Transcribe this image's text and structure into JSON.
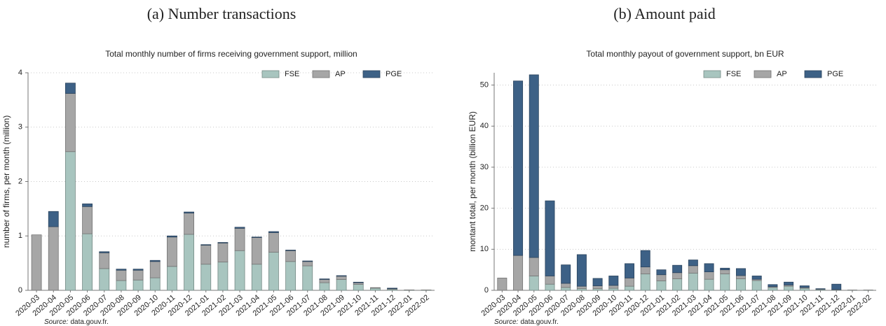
{
  "chart_data": [
    {
      "type": "bar",
      "stacked": true,
      "caption": "(a) Number transactions",
      "title": "Total monthly number of firms receiving government support, million",
      "ylabel": "number of firms, per month (million)",
      "source_label": "Source:",
      "source": "data.gouv.fr.",
      "categories": [
        "2020-03",
        "2020-04",
        "2020-05",
        "2020-06",
        "2020-07",
        "2020-08",
        "2020-09",
        "2020-10",
        "2020-11",
        "2020-12",
        "2021-01",
        "2021-02",
        "2021-03",
        "2021-04",
        "2021-05",
        "2021-06",
        "2021-07",
        "2021-08",
        "2021-09",
        "2021-10",
        "2021-11",
        "2021-12",
        "2022-01",
        "2022-02"
      ],
      "series": [
        {
          "name": "FSE",
          "color": "#a8c5bf",
          "values": [
            0,
            0,
            2.55,
            1.04,
            0.4,
            0.18,
            0.19,
            0.23,
            0.44,
            1.03,
            0.48,
            0.52,
            0.73,
            0.48,
            0.7,
            0.53,
            0.45,
            0.14,
            0.2,
            0.11,
            0.04,
            0.02,
            0.005,
            0.005
          ]
        },
        {
          "name": "AP",
          "color": "#a6a6a6",
          "values": [
            1.02,
            1.17,
            1.07,
            0.5,
            0.29,
            0.19,
            0.18,
            0.3,
            0.54,
            0.39,
            0.35,
            0.35,
            0.41,
            0.49,
            0.36,
            0.2,
            0.08,
            0.06,
            0.06,
            0.03,
            0.01,
            0.01,
            0.003,
            0.002
          ]
        },
        {
          "name": "PGE",
          "color": "#3d6186",
          "values": [
            0,
            0.28,
            0.19,
            0.05,
            0.02,
            0.02,
            0.02,
            0.02,
            0.02,
            0.02,
            0.01,
            0.01,
            0.02,
            0.01,
            0.02,
            0.01,
            0.01,
            0.01,
            0.01,
            0.01,
            0,
            0.01,
            0,
            0
          ]
        }
      ],
      "ylim": [
        0,
        4
      ],
      "yticks": [
        0,
        1,
        2,
        3,
        4
      ],
      "grid": true,
      "legend": "upper right"
    },
    {
      "type": "bar",
      "stacked": true,
      "caption": "(b) Amount paid",
      "title": "Total monthly payout of government support, bn EUR",
      "ylabel": "montant total, per month (billion EUR)",
      "source_label": "Source:",
      "source": "data.gouv.fr.",
      "categories": [
        "2020-03",
        "2020-04",
        "2020-05",
        "2020-06",
        "2020-07",
        "2020-08",
        "2020-09",
        "2020-10",
        "2020-11",
        "2020-12",
        "2021-01",
        "2021-02",
        "2021-03",
        "2021-04",
        "2021-05",
        "2021-06",
        "2021-07",
        "2021-08",
        "2021-09",
        "2021-10",
        "2021-11",
        "2021-12",
        "2022-01",
        "2022-02"
      ],
      "series": [
        {
          "name": "FSE",
          "color": "#a8c5bf",
          "values": [
            0,
            0,
            3.5,
            1.5,
            0.7,
            0.4,
            0.4,
            0.5,
            1.0,
            4.0,
            2.3,
            2.8,
            4.2,
            2.7,
            4.0,
            2.8,
            2.4,
            0.7,
            1.0,
            0.5,
            0.2,
            0.1,
            0.05,
            0.05
          ]
        },
        {
          "name": "AP",
          "color": "#a6a6a6",
          "values": [
            3.0,
            8.5,
            4.5,
            2.0,
            1.0,
            0.6,
            0.7,
            0.7,
            2.0,
            1.7,
            1.5,
            1.5,
            1.8,
            1.8,
            1.0,
            0.8,
            0.3,
            0.2,
            0.3,
            0.2,
            0.1,
            0.1,
            0.02,
            0.02
          ]
        },
        {
          "name": "PGE",
          "color": "#3d6186",
          "values": [
            0,
            42.5,
            44.5,
            18.3,
            4.5,
            7.7,
            1.8,
            2.3,
            3.5,
            4.0,
            1.2,
            1.8,
            1.4,
            2.0,
            0.4,
            1.7,
            0.8,
            0.5,
            0.7,
            0.4,
            0.1,
            1.3,
            0,
            0
          ]
        }
      ],
      "ylim": [
        0,
        53
      ],
      "yticks": [
        0,
        10,
        20,
        30,
        40,
        50
      ],
      "grid": true,
      "legend": "upper right"
    }
  ]
}
